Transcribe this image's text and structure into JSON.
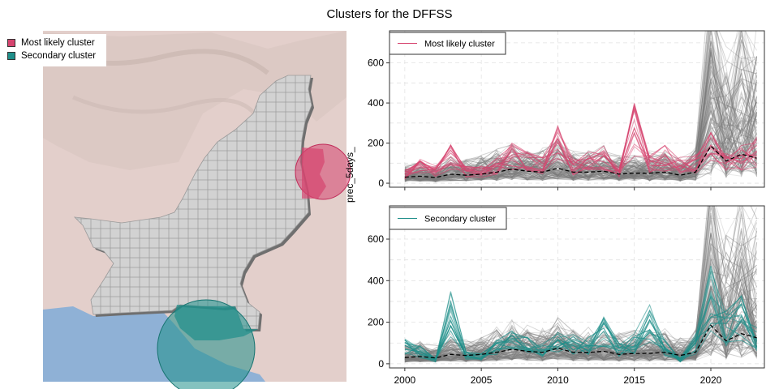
{
  "title": "Clusters for the DFFSS",
  "map": {
    "legend": [
      {
        "label": "Most likely cluster",
        "color": "#d6446f"
      },
      {
        "label": "Secondary cluster",
        "color": "#1f8f8a"
      }
    ]
  },
  "colors": {
    "background_lines": "#7a7a7a",
    "mean_line": "#000000",
    "cluster1": "#d6446f",
    "cluster2": "#1f8f8a"
  },
  "chart_data": [
    {
      "type": "line",
      "legend_label": "Most likely cluster",
      "ylabel": "prec_5days_",
      "xlim": [
        1999,
        2023.5
      ],
      "ylim": [
        -20,
        760
      ],
      "yticks": [
        0,
        200,
        400,
        600
      ],
      "xticks": [
        2000,
        2005,
        2010,
        2015,
        2020
      ],
      "grid": true,
      "x": [
        2000,
        2001,
        2002,
        2003,
        2004,
        2005,
        2006,
        2007,
        2008,
        2009,
        2010,
        2011,
        2012,
        2013,
        2014,
        2015,
        2016,
        2017,
        2018,
        2019,
        2020,
        2021,
        2022,
        2023
      ],
      "mean_series": [
        30,
        35,
        28,
        45,
        40,
        45,
        55,
        70,
        60,
        55,
        75,
        55,
        55,
        60,
        45,
        50,
        50,
        55,
        40,
        55,
        185,
        110,
        145,
        125
      ],
      "cluster_series_mean": [
        45,
        95,
        60,
        140,
        60,
        60,
        85,
        140,
        110,
        90,
        200,
        90,
        110,
        130,
        60,
        280,
        100,
        130,
        90,
        100,
        190,
        120,
        130,
        160
      ]
    },
    {
      "type": "line",
      "legend_label": "Secondary cluster",
      "ylabel": "prec_5days_",
      "xlim": [
        1999,
        2023.5
      ],
      "ylim": [
        -20,
        760
      ],
      "yticks": [
        0,
        200,
        400,
        600
      ],
      "xticks": [
        2000,
        2005,
        2010,
        2015,
        2020
      ],
      "grid": true,
      "x": [
        2000,
        2001,
        2002,
        2003,
        2004,
        2005,
        2006,
        2007,
        2008,
        2009,
        2010,
        2011,
        2012,
        2013,
        2014,
        2015,
        2016,
        2017,
        2018,
        2019,
        2020,
        2021,
        2022,
        2023
      ],
      "mean_series": [
        30,
        35,
        28,
        45,
        40,
        45,
        55,
        70,
        60,
        55,
        75,
        55,
        55,
        60,
        45,
        50,
        50,
        55,
        40,
        55,
        185,
        110,
        145,
        125
      ],
      "cluster_series_mean": [
        90,
        60,
        20,
        240,
        40,
        35,
        80,
        110,
        90,
        70,
        110,
        100,
        90,
        160,
        70,
        100,
        230,
        80,
        20,
        100,
        340,
        180,
        230,
        120
      ]
    }
  ]
}
